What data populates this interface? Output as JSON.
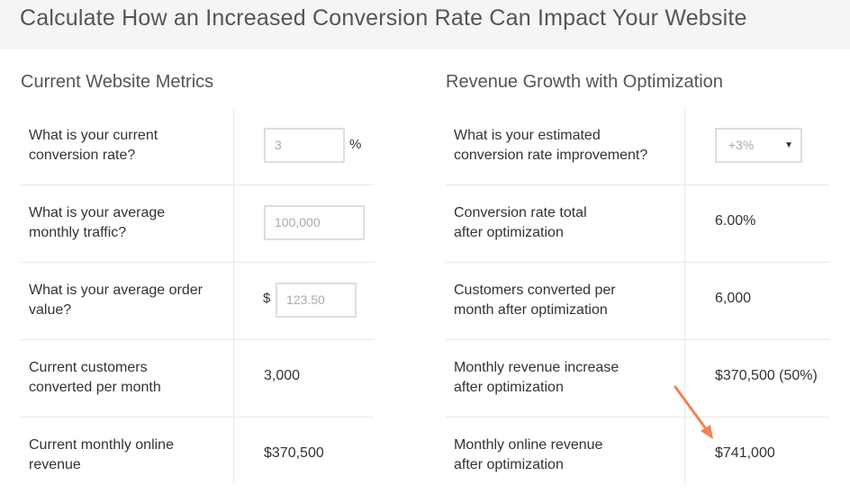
{
  "page": {
    "title": "Calculate How an Increased Conversion Rate Can Impact Your Website"
  },
  "current_metrics": {
    "title": "Current Website Metrics",
    "conversion_rate": {
      "question": "What is your current\nconversion rate?",
      "value": "3",
      "unit": "%"
    },
    "monthly_traffic": {
      "question": "What is your average\nmonthly traffic?",
      "value": "100,000"
    },
    "order_value": {
      "question": "What is your average order\nvalue?",
      "currency": "$",
      "value": "123.50"
    },
    "customers": {
      "question": "Current customers\nconverted per month",
      "value": "3,000"
    },
    "revenue": {
      "question": "Current monthly online\nrevenue",
      "value": "$370,500"
    }
  },
  "growth": {
    "title": "Revenue Growth with Optimization",
    "improvement": {
      "question": "What is your estimated\nconversion rate improvement?",
      "selected": "+3%"
    },
    "total_rate": {
      "question": "Conversion rate total\nafter optimization",
      "value": "6.00%"
    },
    "customers": {
      "question": "Customers converted per\nmonth after optimization",
      "value": "6,000"
    },
    "revenue_increase": {
      "question": "Monthly revenue increase\nafter optimization",
      "value": "$370,500 (50%)"
    },
    "revenue": {
      "question": "Monthly online revenue\nafter optimization",
      "value": "$741,000"
    }
  },
  "colors": {
    "header_bg": "#f5f5f5",
    "annotation_arrow": "#f0825a"
  }
}
